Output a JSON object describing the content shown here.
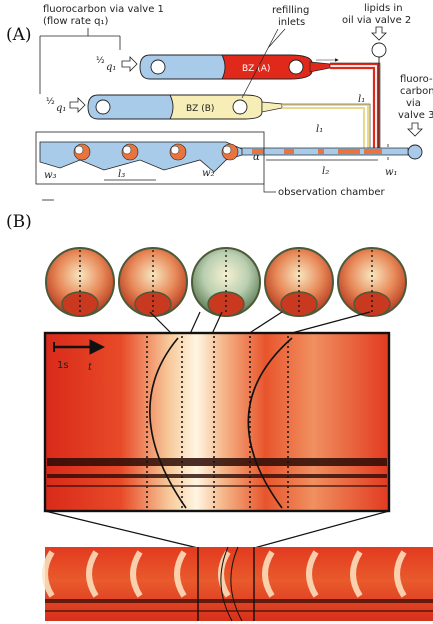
{
  "panel_a": {
    "label": "(A)",
    "fluorocarbon_valve1_line1": "fluorocarbon via valve 1",
    "fluorocarbon_valve1_line2": "(flow rate q₁)",
    "flow_frac": "½",
    "flow_q": "q₁",
    "refilling_line1": "refilling",
    "refilling_line2": "inlets",
    "lipids_line1": "lipids in",
    "lipids_line2": "oil via valve 2",
    "fluoro3_line1": "fluoro-",
    "fluoro3_line2": "carbon",
    "fluoro3_line3": "via",
    "fluoro3_line4": "valve 3",
    "bz_a": "BZ (A)",
    "bz_b": "BZ (B)",
    "l1": "l₁",
    "l2": "l₂",
    "l3": "l₃",
    "w1": "w₁",
    "w2": "w₂",
    "w3": "w₃",
    "alpha": "α",
    "observation": "observation chamber"
  },
  "panel_b": {
    "label": "(B)",
    "scale_label": "1s",
    "time_label": "t",
    "droplet_count": 5
  },
  "colors": {
    "channel_blue": "#a9cbea",
    "bz_red": "#e0291b",
    "bz_cream": "#f6edb7",
    "kymo_base": "#e33a22"
  }
}
